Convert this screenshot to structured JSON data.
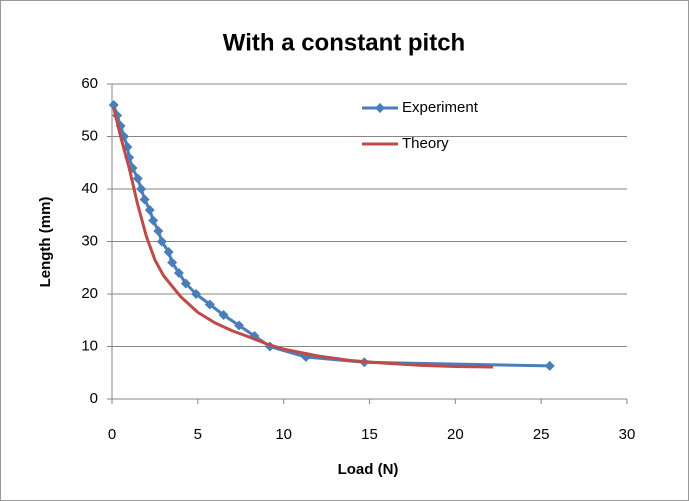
{
  "chart_data": {
    "type": "line",
    "title": "With a constant pitch",
    "xlabel": "Load (N)",
    "ylabel": "Length (mm)",
    "series": [
      {
        "name": "Experiment",
        "color": "#4a7ebb",
        "marker": "diamond",
        "x": [
          0.1,
          0.3,
          0.5,
          0.7,
          0.9,
          1.0,
          1.2,
          1.5,
          1.7,
          1.9,
          2.2,
          2.4,
          2.7,
          2.9,
          3.3,
          3.5,
          3.9,
          4.3,
          4.9,
          5.7,
          6.5,
          7.4,
          8.3,
          9.2,
          11.3,
          14.7,
          25.5
        ],
        "values": [
          56,
          54,
          52,
          50,
          48,
          46,
          44,
          42,
          40,
          38,
          36,
          34,
          32,
          30,
          28,
          26,
          24,
          22,
          20,
          18,
          16,
          14,
          12,
          10,
          8,
          7,
          6.3
        ]
      },
      {
        "name": "Theory",
        "color": "#be4b48",
        "x": [
          0.1,
          0.5,
          1,
          1.5,
          2,
          2.5,
          3,
          4,
          5,
          6,
          7,
          8,
          9,
          10,
          12,
          14,
          16,
          18,
          20,
          22.2
        ],
        "values": [
          55.5,
          50,
          44,
          37,
          31,
          26.5,
          23.5,
          19.5,
          16.5,
          14.5,
          13,
          11.8,
          10.5,
          9.5,
          8.2,
          7.3,
          6.8,
          6.4,
          6.2,
          6.1
        ]
      }
    ],
    "xlim": [
      0,
      30
    ],
    "xticks": [
      0,
      5,
      10,
      15,
      20,
      25,
      30
    ],
    "ylim": [
      0,
      60
    ],
    "yticks": [
      0,
      10,
      20,
      30,
      40,
      50,
      60
    ],
    "grid": true,
    "legend": "upper right"
  }
}
